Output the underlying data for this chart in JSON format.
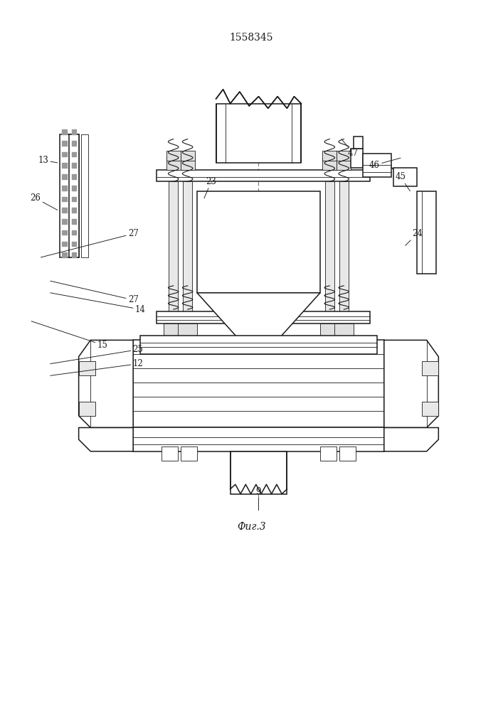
{
  "title": "1558345",
  "fig_label": "Фиг.3",
  "bg_color": "#ffffff",
  "line_color": "#1a1a1a",
  "lw_main": 1.1,
  "lw_thin": 0.6,
  "lw_thick": 1.6
}
